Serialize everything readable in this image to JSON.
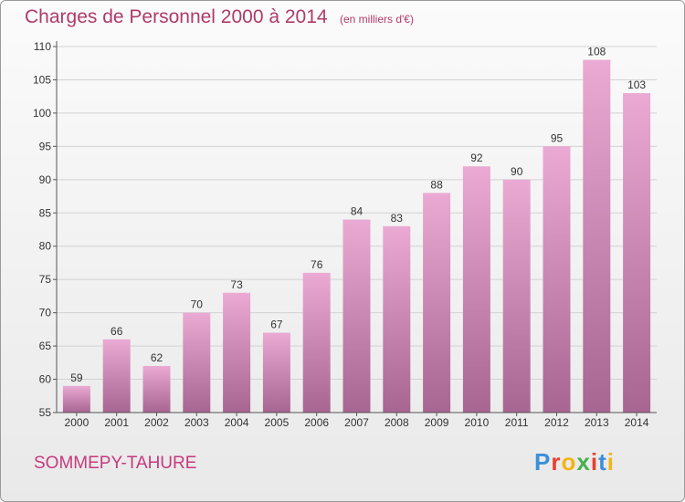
{
  "header": {
    "title": "Charges de Personnel 2000 à 2014",
    "subtitle": "(en milliers d'€)"
  },
  "footer": {
    "place": "SOMMEPY-TAHURE",
    "logo_text": "Proxiti",
    "logo_colors": [
      "#3a8fd9",
      "#e8402f",
      "#f2b515",
      "#46b04a",
      "#e8402f",
      "#3a8fd9",
      "#f2b515"
    ]
  },
  "colors": {
    "bar_top": "#eaaad4",
    "bar_bottom": "#a76591",
    "axis": "#555555",
    "grid": "#d2d2d2",
    "text": "#333333"
  },
  "chart_data": {
    "type": "bar",
    "title": "Charges de Personnel 2000 à 2014",
    "subtitle": "(en milliers d'€)",
    "categories": [
      "2000",
      "2001",
      "2002",
      "2003",
      "2004",
      "2005",
      "2006",
      "2007",
      "2008",
      "2009",
      "2010",
      "2011",
      "2012",
      "2013",
      "2014"
    ],
    "values": [
      59,
      66,
      62,
      70,
      73,
      67,
      76,
      84,
      83,
      88,
      92,
      90,
      95,
      108,
      103
    ],
    "ylim": [
      55,
      110
    ],
    "yticks": [
      55,
      60,
      65,
      70,
      75,
      80,
      85,
      90,
      95,
      100,
      105,
      110
    ],
    "grid": true,
    "data_labels": true
  }
}
